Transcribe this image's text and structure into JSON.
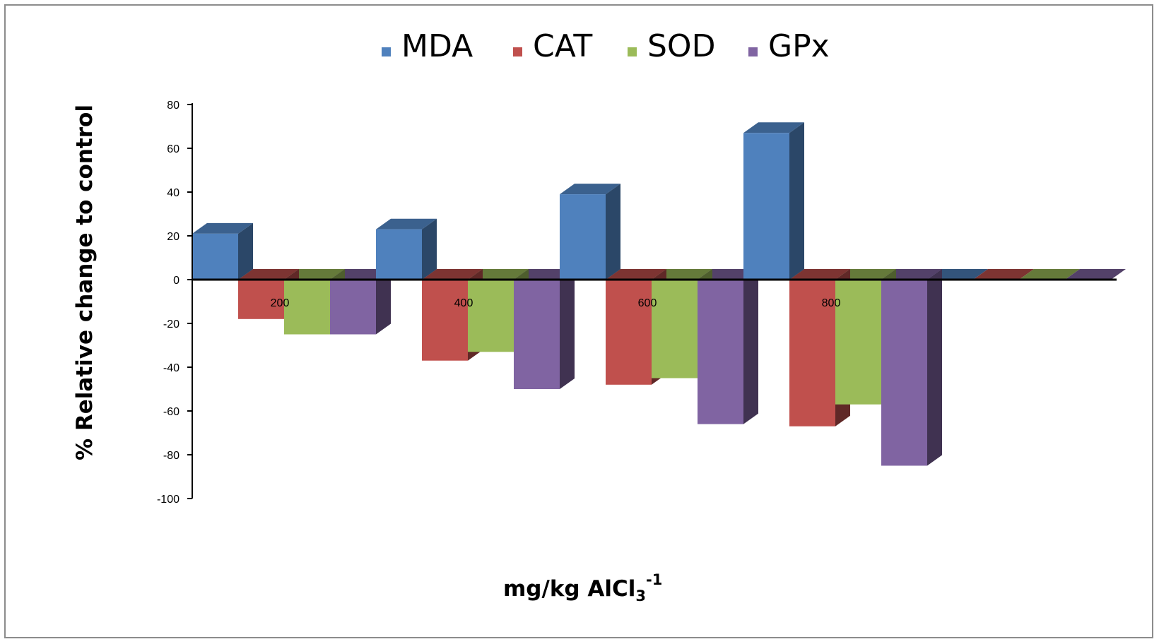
{
  "chart_data": {
    "type": "bar",
    "style": "3d-clustered-column",
    "categories": [
      "200",
      "400",
      "600",
      "800"
    ],
    "series": [
      {
        "name": "MDA",
        "color": "#4F81BD",
        "values": [
          21,
          23,
          39,
          67
        ]
      },
      {
        "name": "CAT",
        "color": "#C0504D",
        "values": [
          -18,
          -37,
          -48,
          -67
        ]
      },
      {
        "name": "SOD",
        "color": "#9BBB59",
        "values": [
          -25,
          -33,
          -45,
          -57
        ]
      },
      {
        "name": "GPx",
        "color": "#8064A2",
        "values": [
          -25,
          -50,
          -66,
          -85
        ]
      }
    ],
    "ylim": [
      -100,
      80
    ],
    "yticks": [
      "80",
      "60",
      "40",
      "20",
      "0",
      "-20",
      "-40",
      "-60",
      "-80",
      "-100"
    ],
    "ylabel": "% Relative change to control",
    "xlabel": {
      "main": "mg/kg AlCl",
      "sub": "3",
      "sup": "-1"
    },
    "legend_position": "top",
    "grid": false
  }
}
